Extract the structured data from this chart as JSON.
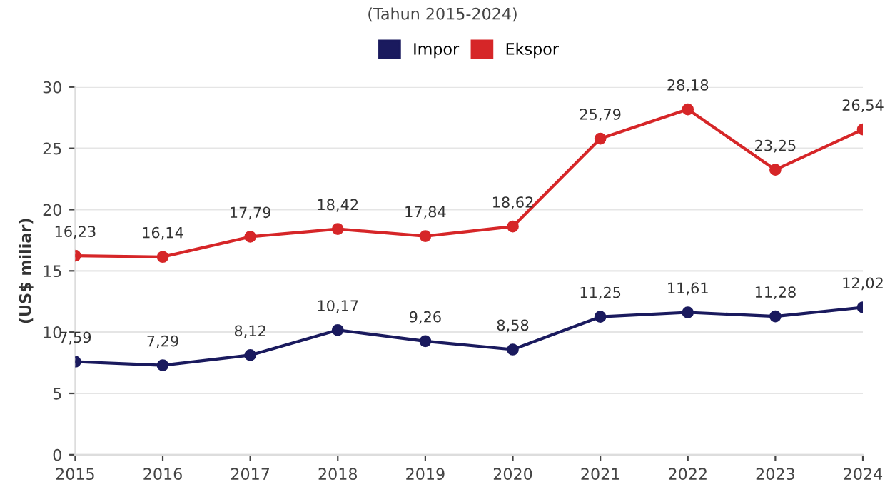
{
  "chart_data": {
    "type": "line",
    "subtitle": "(Tahun 2015-2024)",
    "ylabel": "(US$ miliar)",
    "categories": [
      "2015",
      "2016",
      "2017",
      "2018",
      "2019",
      "2020",
      "2021",
      "2022",
      "2023",
      "2024"
    ],
    "series": [
      {
        "name": "Impor",
        "color": "#1a1a5e",
        "values": [
          7.59,
          7.29,
          8.12,
          10.17,
          9.26,
          8.58,
          11.25,
          11.61,
          11.28,
          12.02
        ],
        "value_labels": [
          "7,59",
          "7,29",
          "8,12",
          "10,17",
          "9,26",
          "8,58",
          "11,25",
          "11,61",
          "11,28",
          "12,02"
        ]
      },
      {
        "name": "Ekspor",
        "color": "#d62628",
        "values": [
          16.23,
          16.14,
          17.79,
          18.42,
          17.84,
          18.62,
          25.79,
          28.18,
          23.25,
          26.54
        ],
        "value_labels": [
          "16,23",
          "16,14",
          "17,79",
          "18,42",
          "17,84",
          "18,62",
          "25,79",
          "28,18",
          "23,25",
          "26,54"
        ]
      }
    ],
    "ylim": [
      0,
      30
    ],
    "yticks": [
      0,
      5,
      10,
      15,
      20,
      25,
      30
    ],
    "grid": "y",
    "legend": "top",
    "marker": "circle",
    "line_style": "solid"
  }
}
